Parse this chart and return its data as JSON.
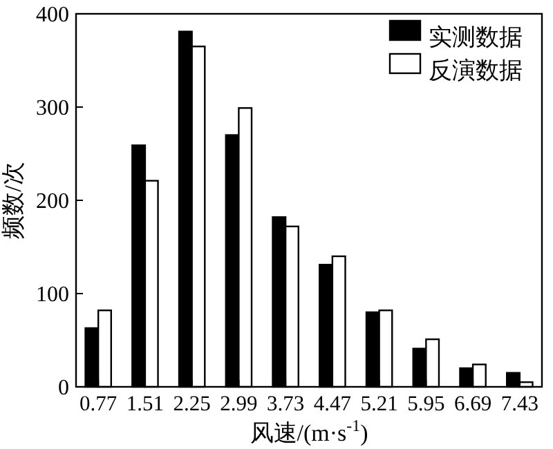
{
  "chart_data": {
    "type": "bar",
    "xlabel": "风速/(m·s$^{-1}$)",
    "ylabel": "频数/次",
    "categories": [
      "0.77",
      "1.51",
      "2.25",
      "2.99",
      "3.73",
      "4.47",
      "5.21",
      "5.95",
      "6.69",
      "7.43"
    ],
    "series": [
      {
        "name": "实测数据",
        "color": "#000000",
        "values": [
          63,
          259,
          381,
          270,
          182,
          131,
          80,
          41,
          20,
          15
        ]
      },
      {
        "name": "反演数据",
        "color": "#ffffff",
        "values": [
          82,
          221,
          365,
          299,
          172,
          140,
          82,
          51,
          24,
          5
        ]
      }
    ],
    "ylim": [
      0,
      400
    ],
    "yticks": [
      0,
      100,
      200,
      300,
      400
    ],
    "grid": false,
    "legend": "top right"
  }
}
